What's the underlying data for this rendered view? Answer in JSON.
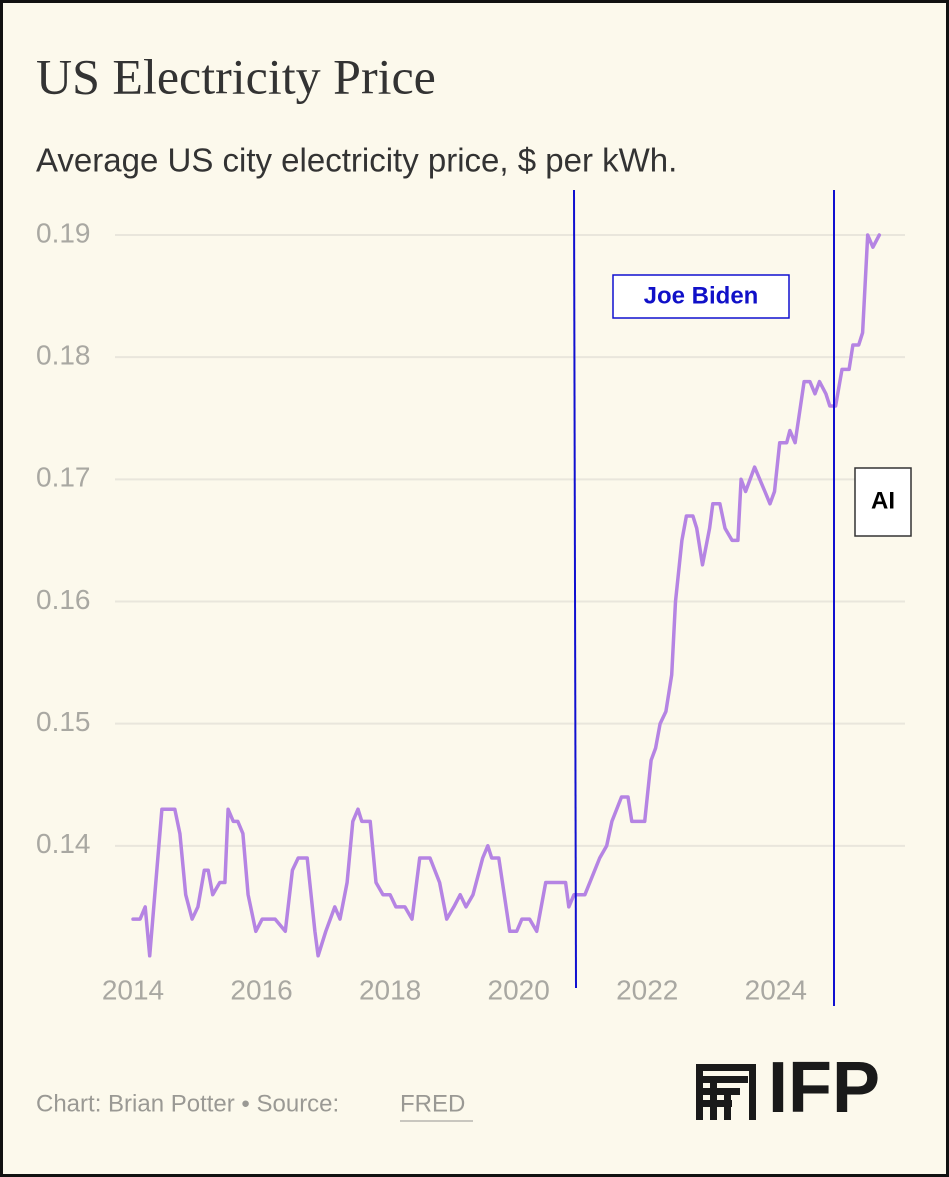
{
  "chart_data": {
    "type": "line",
    "title": "US Electricity Price",
    "subtitle": "Average US city electricity price, $ per kWh.",
    "x": [
      2014.0,
      2014.11,
      2014.19,
      2014.26,
      2014.45,
      2014.65,
      2014.73,
      2014.82,
      2014.92,
      2015.01,
      2015.11,
      2015.17,
      2015.24,
      2015.35,
      2015.43,
      2015.48,
      2015.56,
      2015.63,
      2015.71,
      2015.79,
      2015.91,
      2016.01,
      2016.21,
      2016.37,
      2016.48,
      2016.57,
      2016.71,
      2016.83,
      2016.88,
      2017.0,
      2017.14,
      2017.22,
      2017.33,
      2017.42,
      2017.5,
      2017.56,
      2017.69,
      2017.78,
      2017.89,
      2018.0,
      2018.09,
      2018.23,
      2018.34,
      2018.46,
      2018.62,
      2018.77,
      2018.88,
      2018.99,
      2019.09,
      2019.18,
      2019.29,
      2019.44,
      2019.52,
      2019.58,
      2019.69,
      2019.86,
      2019.97,
      2020.05,
      2020.17,
      2020.28,
      2020.42,
      2020.64,
      2020.73,
      2020.78,
      2020.86,
      2021.03,
      2021.26,
      2021.37,
      2021.45,
      2021.6,
      2021.7,
      2021.76,
      2021.96,
      2022.06,
      2022.13,
      2022.2,
      2022.29,
      2022.38,
      2022.44,
      2022.54,
      2022.61,
      2022.71,
      2022.77,
      2022.86,
      2022.97,
      2023.02,
      2023.13,
      2023.21,
      2023.32,
      2023.41,
      2023.46,
      2023.53,
      2023.67,
      2023.83,
      2023.91,
      2023.98,
      2024.06,
      2024.17,
      2024.22,
      2024.3,
      2024.44,
      2024.53,
      2024.61,
      2024.68,
      2024.78,
      2024.84,
      2024.93,
      2025.03,
      2025.14,
      2025.2,
      2025.29,
      2025.35,
      2025.43,
      2025.51,
      2025.61
    ],
    "values": [
      0.134,
      0.134,
      0.135,
      0.131,
      0.143,
      0.143,
      0.141,
      0.136,
      0.134,
      0.135,
      0.138,
      0.138,
      0.136,
      0.137,
      0.137,
      0.143,
      0.142,
      0.142,
      0.141,
      0.136,
      0.133,
      0.134,
      0.134,
      0.133,
      0.138,
      0.139,
      0.139,
      0.133,
      0.131,
      0.133,
      0.135,
      0.134,
      0.137,
      0.142,
      0.143,
      0.142,
      0.142,
      0.137,
      0.136,
      0.136,
      0.135,
      0.135,
      0.134,
      0.139,
      0.139,
      0.137,
      0.134,
      0.135,
      0.136,
      0.135,
      0.136,
      0.139,
      0.14,
      0.139,
      0.139,
      0.133,
      0.133,
      0.134,
      0.134,
      0.133,
      0.137,
      0.137,
      0.137,
      0.135,
      0.136,
      0.136,
      0.139,
      0.14,
      0.142,
      0.144,
      0.144,
      0.142,
      0.142,
      0.147,
      0.148,
      0.15,
      0.151,
      0.154,
      0.16,
      0.165,
      0.167,
      0.167,
      0.166,
      0.163,
      0.166,
      0.168,
      0.168,
      0.166,
      0.165,
      0.165,
      0.17,
      0.169,
      0.171,
      0.169,
      0.168,
      0.169,
      0.173,
      0.173,
      0.174,
      0.173,
      0.178,
      0.178,
      0.177,
      0.178,
      0.177,
      0.176,
      0.176,
      0.179,
      0.179,
      0.181,
      0.181,
      0.182,
      0.19,
      0.189,
      0.19
    ],
    "color": "#b584e3",
    "xlim": [
      2013.72,
      2026.01
    ],
    "xticks": [
      2014,
      2016,
      2018,
      2020,
      2022,
      2024
    ],
    "ylim": [
      0.13,
      0.19
    ],
    "yticks": [
      0.14,
      0.15,
      0.16,
      0.17,
      0.18,
      0.19
    ],
    "grid": true,
    "annotations": [
      "Joe Biden",
      "AI"
    ],
    "credit": "Chart: Brian Potter • Source:",
    "source": "FRED",
    "logo": "IFP"
  }
}
